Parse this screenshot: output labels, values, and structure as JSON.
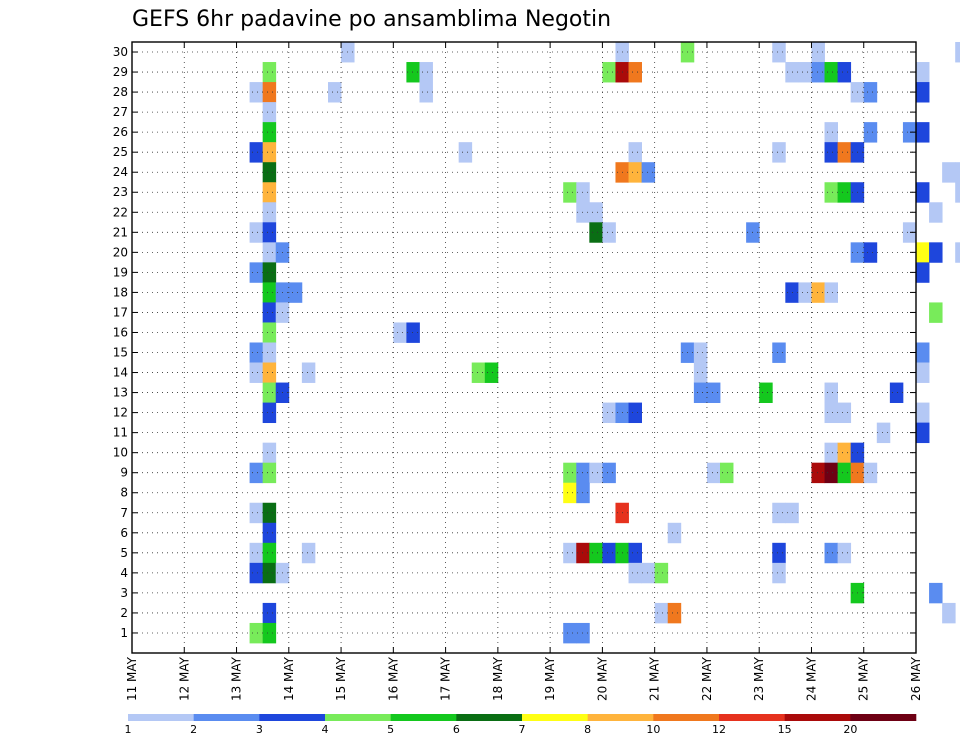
{
  "chart_data": {
    "type": "heatmap",
    "title": "GEFS 6hr padavine po ansamblima Negotin",
    "y_ticks": [
      "1",
      "2",
      "3",
      "4",
      "5",
      "6",
      "7",
      "8",
      "9",
      "10",
      "11",
      "12",
      "13",
      "14",
      "15",
      "16",
      "17",
      "18",
      "19",
      "20",
      "21",
      "22",
      "23",
      "24",
      "25",
      "26",
      "27",
      "28",
      "29",
      "30"
    ],
    "ylim": [
      0,
      30
    ],
    "x_ticks": [
      "11 MAY",
      "12 MAY",
      "13 MAY",
      "14 MAY",
      "15 MAY",
      "16 MAY",
      "17 MAY",
      "18 MAY",
      "19 MAY",
      "20 MAY",
      "21 MAY",
      "22 MAY",
      "23 MAY",
      "24 MAY",
      "25 MAY",
      "26 MAY"
    ],
    "time_steps_per_day": 4,
    "grid": true,
    "legend": {
      "placement": "bottom",
      "colors": [
        "#b4c8f5",
        "#5a8cf0",
        "#1e46dc",
        "#78eb5a",
        "#14c81e",
        "#0a6e14",
        "#ffff14",
        "#ffb43c",
        "#f0781e",
        "#e6321e",
        "#aa0a0a",
        "#6e0014"
      ],
      "labels": [
        "1",
        "2",
        "3",
        "4",
        "5",
        "6",
        "7",
        "8",
        "10",
        "12",
        "15",
        "20"
      ]
    },
    "cells": [
      [
        16,
        30,
        0
      ],
      [
        37,
        30,
        0
      ],
      [
        42,
        30,
        3
      ],
      [
        49,
        30,
        0
      ],
      [
        52,
        30,
        0
      ],
      [
        63,
        30,
        0
      ],
      [
        64,
        30,
        3
      ],
      [
        10,
        29,
        3
      ],
      [
        21,
        29,
        4
      ],
      [
        22,
        29,
        0
      ],
      [
        36,
        29,
        3
      ],
      [
        37,
        29,
        10
      ],
      [
        38,
        29,
        8
      ],
      [
        50,
        29,
        0
      ],
      [
        51,
        29,
        0
      ],
      [
        52,
        29,
        1
      ],
      [
        53,
        29,
        4
      ],
      [
        54,
        29,
        2
      ],
      [
        60,
        29,
        0
      ],
      [
        66,
        29,
        0
      ],
      [
        70,
        29,
        0
      ],
      [
        82,
        29,
        3
      ],
      [
        83,
        29,
        2
      ],
      [
        87,
        29,
        1
      ],
      [
        9,
        28,
        0
      ],
      [
        10,
        28,
        8
      ],
      [
        15,
        28,
        0
      ],
      [
        22,
        28,
        0
      ],
      [
        55,
        28,
        0
      ],
      [
        56,
        28,
        1
      ],
      [
        60,
        28,
        2
      ],
      [
        83,
        28,
        0
      ],
      [
        10,
        27,
        0
      ],
      [
        10,
        26,
        4
      ],
      [
        53,
        26,
        0
      ],
      [
        56,
        26,
        1
      ],
      [
        59,
        26,
        1
      ],
      [
        60,
        26,
        2
      ],
      [
        72,
        26,
        0
      ],
      [
        9,
        25,
        2
      ],
      [
        10,
        25,
        7
      ],
      [
        25,
        25,
        0
      ],
      [
        38,
        25,
        0
      ],
      [
        49,
        25,
        0
      ],
      [
        53,
        25,
        2
      ],
      [
        54,
        25,
        8
      ],
      [
        55,
        25,
        2
      ],
      [
        66,
        25,
        5
      ],
      [
        67,
        25,
        0
      ],
      [
        83,
        25,
        2
      ],
      [
        10,
        24,
        5
      ],
      [
        37,
        24,
        8
      ],
      [
        38,
        24,
        7
      ],
      [
        39,
        24,
        1
      ],
      [
        62,
        24,
        0
      ],
      [
        63,
        24,
        0
      ],
      [
        68,
        24,
        0
      ],
      [
        10,
        23,
        7
      ],
      [
        33,
        23,
        3
      ],
      [
        34,
        23,
        0
      ],
      [
        53,
        23,
        3
      ],
      [
        54,
        23,
        4
      ],
      [
        55,
        23,
        2
      ],
      [
        60,
        23,
        2
      ],
      [
        63,
        23,
        0
      ],
      [
        66,
        23,
        11
      ],
      [
        67,
        23,
        10
      ],
      [
        72,
        23,
        0
      ],
      [
        75,
        23,
        2
      ],
      [
        76,
        23,
        3
      ],
      [
        78,
        23,
        1
      ],
      [
        79,
        23,
        5
      ],
      [
        80,
        23,
        1
      ],
      [
        87,
        23,
        0
      ],
      [
        10,
        22,
        0
      ],
      [
        34,
        22,
        0
      ],
      [
        35,
        22,
        0
      ],
      [
        61,
        22,
        0
      ],
      [
        9,
        21,
        0
      ],
      [
        10,
        21,
        2
      ],
      [
        35,
        21,
        5
      ],
      [
        36,
        21,
        0
      ],
      [
        47,
        21,
        1
      ],
      [
        59,
        21,
        0
      ],
      [
        72,
        21,
        5
      ],
      [
        73,
        21,
        2
      ],
      [
        74,
        21,
        0
      ],
      [
        10,
        20,
        0
      ],
      [
        11,
        20,
        1
      ],
      [
        55,
        20,
        1
      ],
      [
        56,
        20,
        2
      ],
      [
        60,
        20,
        6
      ],
      [
        61,
        20,
        2
      ],
      [
        63,
        20,
        0
      ],
      [
        66,
        20,
        9
      ],
      [
        67,
        20,
        0
      ],
      [
        83,
        20,
        0
      ],
      [
        85,
        20,
        1
      ],
      [
        86,
        20,
        0
      ],
      [
        87,
        20,
        5
      ],
      [
        9,
        19,
        1
      ],
      [
        10,
        19,
        5
      ],
      [
        60,
        19,
        2
      ],
      [
        69,
        19,
        0
      ],
      [
        73,
        19,
        1
      ],
      [
        74,
        19,
        1
      ],
      [
        10,
        18,
        4
      ],
      [
        11,
        18,
        1
      ],
      [
        12,
        18,
        1
      ],
      [
        50,
        18,
        2
      ],
      [
        51,
        18,
        0
      ],
      [
        52,
        18,
        7
      ],
      [
        53,
        18,
        0
      ],
      [
        66,
        18,
        0
      ],
      [
        69,
        18,
        0
      ],
      [
        70,
        18,
        0
      ],
      [
        74,
        18,
        1
      ],
      [
        77,
        18,
        4
      ],
      [
        78,
        18,
        0
      ],
      [
        10,
        17,
        2
      ],
      [
        11,
        17,
        0
      ],
      [
        61,
        17,
        3
      ],
      [
        66,
        17,
        0
      ],
      [
        71,
        17,
        10
      ],
      [
        72,
        17,
        0
      ],
      [
        77,
        17,
        2
      ],
      [
        82,
        17,
        0
      ],
      [
        87,
        17,
        0
      ],
      [
        10,
        16,
        3
      ],
      [
        20,
        16,
        0
      ],
      [
        21,
        16,
        2
      ],
      [
        9,
        15,
        1
      ],
      [
        10,
        15,
        0
      ],
      [
        42,
        15,
        1
      ],
      [
        43,
        15,
        0
      ],
      [
        49,
        15,
        1
      ],
      [
        60,
        15,
        1
      ],
      [
        72,
        15,
        0
      ],
      [
        73,
        15,
        0
      ],
      [
        81,
        15,
        0
      ],
      [
        82,
        15,
        0
      ],
      [
        86,
        15,
        3
      ],
      [
        87,
        15,
        0
      ],
      [
        9,
        14,
        0
      ],
      [
        10,
        14,
        7
      ],
      [
        13,
        14,
        0
      ],
      [
        26,
        14,
        3
      ],
      [
        27,
        14,
        4
      ],
      [
        43,
        14,
        0
      ],
      [
        60,
        14,
        0
      ],
      [
        70,
        14,
        1
      ],
      [
        71,
        14,
        4
      ],
      [
        72,
        14,
        0
      ],
      [
        73,
        14,
        0
      ],
      [
        10,
        13,
        3
      ],
      [
        11,
        13,
        2
      ],
      [
        43,
        13,
        1
      ],
      [
        44,
        13,
        1
      ],
      [
        48,
        13,
        4
      ],
      [
        53,
        13,
        0
      ],
      [
        58,
        13,
        2
      ],
      [
        10,
        12,
        2
      ],
      [
        36,
        12,
        0
      ],
      [
        37,
        12,
        1
      ],
      [
        38,
        12,
        2
      ],
      [
        53,
        12,
        0
      ],
      [
        54,
        12,
        0
      ],
      [
        60,
        12,
        0
      ],
      [
        57,
        11,
        0
      ],
      [
        60,
        11,
        2
      ],
      [
        66,
        11,
        2
      ],
      [
        72,
        11,
        0
      ],
      [
        75,
        11,
        2
      ],
      [
        76,
        11,
        1
      ],
      [
        77,
        11,
        0
      ],
      [
        78,
        11,
        0
      ],
      [
        79,
        11,
        6
      ],
      [
        80,
        11,
        8
      ],
      [
        81,
        11,
        11
      ],
      [
        82,
        11,
        10
      ],
      [
        83,
        11,
        0
      ],
      [
        84,
        11,
        5
      ],
      [
        85,
        11,
        1
      ],
      [
        10,
        10,
        0
      ],
      [
        53,
        10,
        0
      ],
      [
        54,
        10,
        7
      ],
      [
        55,
        10,
        2
      ],
      [
        9,
        9,
        1
      ],
      [
        10,
        9,
        3
      ],
      [
        33,
        9,
        3
      ],
      [
        34,
        9,
        1
      ],
      [
        35,
        9,
        0
      ],
      [
        36,
        9,
        1
      ],
      [
        44,
        9,
        0
      ],
      [
        45,
        9,
        3
      ],
      [
        52,
        9,
        10
      ],
      [
        53,
        9,
        11
      ],
      [
        54,
        9,
        4
      ],
      [
        55,
        9,
        8
      ],
      [
        56,
        9,
        0
      ],
      [
        33,
        8,
        6
      ],
      [
        34,
        8,
        1
      ],
      [
        9,
        7,
        0
      ],
      [
        10,
        7,
        5
      ],
      [
        37,
        7,
        9
      ],
      [
        49,
        7,
        0
      ],
      [
        50,
        7,
        0
      ],
      [
        66,
        7,
        0
      ],
      [
        68,
        7,
        6
      ],
      [
        69,
        7,
        4
      ],
      [
        70,
        7,
        1
      ],
      [
        10,
        6,
        2
      ],
      [
        41,
        6,
        0
      ],
      [
        84,
        6,
        1
      ],
      [
        85,
        6,
        1
      ],
      [
        87,
        6,
        6
      ],
      [
        9,
        5,
        0
      ],
      [
        10,
        5,
        4
      ],
      [
        13,
        5,
        0
      ],
      [
        33,
        5,
        0
      ],
      [
        34,
        5,
        10
      ],
      [
        35,
        5,
        4
      ],
      [
        36,
        5,
        2
      ],
      [
        37,
        5,
        4
      ],
      [
        38,
        5,
        2
      ],
      [
        49,
        5,
        2
      ],
      [
        53,
        5,
        1
      ],
      [
        54,
        5,
        0
      ],
      [
        66,
        5,
        0
      ],
      [
        9,
        4,
        2
      ],
      [
        10,
        4,
        5
      ],
      [
        11,
        4,
        0
      ],
      [
        38,
        4,
        0
      ],
      [
        39,
        4,
        0
      ],
      [
        40,
        4,
        3
      ],
      [
        49,
        4,
        0
      ],
      [
        55,
        3,
        4
      ],
      [
        61,
        3,
        1
      ],
      [
        77,
        3,
        0
      ],
      [
        79,
        3,
        0
      ],
      [
        82,
        3,
        1
      ],
      [
        10,
        2,
        2
      ],
      [
        40,
        2,
        0
      ],
      [
        41,
        2,
        8
      ],
      [
        62,
        2,
        0
      ],
      [
        66,
        2,
        1
      ],
      [
        9,
        1,
        3
      ],
      [
        10,
        1,
        4
      ],
      [
        33,
        1,
        1
      ],
      [
        34,
        1,
        1
      ],
      [
        67,
        1,
        0
      ],
      [
        80,
        1,
        0
      ],
      [
        87,
        1,
        4
      ]
    ]
  }
}
